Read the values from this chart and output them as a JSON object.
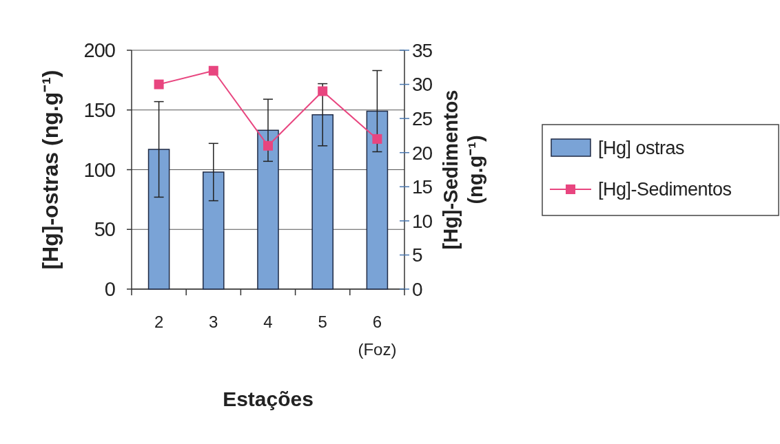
{
  "chart_data": {
    "type": "bar",
    "xlabel": "Estações",
    "ylabel": "[Hg]-ostras (ng.g⁻¹)",
    "y2label": "[Hg]-Sedimentos\n(ng.g⁻¹)",
    "categories": [
      "2",
      "3",
      "4",
      "5",
      "6\n(Foz)"
    ],
    "series": [
      {
        "name": "[Hg] ostras",
        "color": "#7aa3d6",
        "values": [
          117,
          98,
          133,
          146,
          149
        ],
        "errors": [
          40,
          24,
          26,
          26,
          34
        ]
      },
      {
        "name": "[Hg]-Sedimentos",
        "type": "line",
        "axis": "y2",
        "color": "#e8457f",
        "marker": "square",
        "values": [
          30,
          32,
          21,
          29,
          22
        ]
      }
    ],
    "ylim": [
      0,
      200
    ],
    "yticks": [
      0,
      50,
      100,
      150,
      200
    ],
    "y2lim": [
      0,
      35
    ],
    "y2ticks": [
      0,
      5,
      10,
      15,
      20,
      25,
      30,
      35
    ],
    "grid": "y",
    "legend": "right"
  }
}
